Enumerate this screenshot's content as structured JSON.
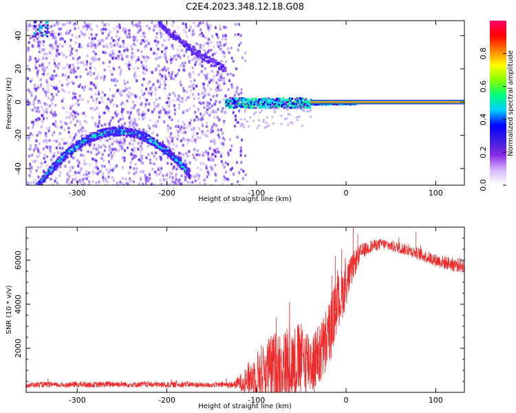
{
  "figure": {
    "title": "C2E4.2023.348.12.18.G08"
  },
  "chart_data": [
    {
      "type": "heatmap",
      "xlabel": "Height of straight line (km)",
      "ylabel": "Frequency (Hz)",
      "xlim": [
        -357,
        132
      ],
      "ylim": [
        -50,
        49
      ],
      "xticks": [
        -300,
        -200,
        -100,
        0,
        100
      ],
      "yticks": [
        -40,
        -20,
        0,
        20,
        40
      ],
      "colorbar": {
        "label": "Normalized spectral amplitude",
        "range": [
          0,
          1
        ],
        "ticks": [
          0.0,
          0.2,
          0.4,
          0.6,
          0.8
        ],
        "colors": [
          "#ffffff",
          "#d7b8ff",
          "#8a2be2",
          "#3d1de0",
          "#0000ff",
          "#00ccff",
          "#00ff80",
          "#80ff00",
          "#ffff00",
          "#ff8000",
          "#ff0000",
          "#ff0066"
        ]
      },
      "features": [
        {
          "name": "noise-region",
          "x_range": [
            -357,
            -125
          ],
          "note_colors": "#7a3cff"
        },
        {
          "name": "arc-lower",
          "x_range": [
            -345,
            -175
          ],
          "peak_x": -255,
          "peak_y": -17,
          "end_y": -50
        },
        {
          "name": "arc-upper",
          "x_range": [
            -210,
            -135
          ],
          "start_y": 49,
          "end_y": 20
        },
        {
          "name": "carrier-line",
          "x_range": [
            -135,
            132
          ],
          "y_value": 0
        }
      ]
    },
    {
      "type": "line",
      "xlabel": "Height of straight line (km)",
      "ylabel": "SNR (10 * v/v)",
      "xlim": [
        -357,
        132
      ],
      "ylim": [
        0,
        7500
      ],
      "xticks": [
        -300,
        -200,
        -100,
        0,
        100
      ],
      "yticks": [
        2000,
        4000,
        6000
      ],
      "series": [
        {
          "color": "#ee2a2a",
          "x": [
            -357,
            -340,
            -320,
            -300,
            -280,
            -260,
            -240,
            -220,
            -200,
            -180,
            -160,
            -140,
            -125,
            -115,
            -105,
            -95,
            -85,
            -75,
            -65,
            -55,
            -45,
            -35,
            -28,
            -22,
            -18,
            -14,
            -10,
            -6,
            -2,
            2,
            6,
            10,
            14,
            18,
            22,
            26,
            30,
            35,
            40,
            50,
            60,
            70,
            80,
            90,
            100,
            110,
            120,
            132
          ],
          "y": [
            330,
            350,
            330,
            360,
            340,
            380,
            350,
            360,
            340,
            370,
            330,
            340,
            350,
            500,
            700,
            900,
            1100,
            1300,
            1200,
            1400,
            1500,
            1400,
            1800,
            2300,
            2800,
            3400,
            4000,
            4300,
            4700,
            5100,
            5500,
            5900,
            6200,
            6400,
            6500,
            6600,
            6650,
            6700,
            6750,
            6650,
            6550,
            6450,
            6300,
            6150,
            6000,
            5900,
            5800,
            5750
          ],
          "noise_amplitude": [
            120,
            130,
            120,
            140,
            130,
            150,
            130,
            140,
            130,
            140,
            120,
            130,
            160,
            500,
            900,
            1300,
            1500,
            1600,
            1700,
            1800,
            1600,
            1500,
            1500,
            1600,
            1500,
            1400,
            1300,
            1200,
            1100,
            900,
            700,
            600,
            450,
            380,
            320,
            300,
            280,
            260,
            250,
            260,
            260,
            270,
            280,
            290,
            300,
            320,
            330,
            340
          ],
          "spikes": [
            [
              -78,
              3400
            ],
            [
              -66,
              2900
            ],
            [
              -53,
              3100
            ],
            [
              -30,
              3000
            ],
            [
              -16,
              5300
            ],
            [
              -12,
              6200
            ],
            [
              -5,
              6500
            ],
            [
              8,
              7500
            ],
            [
              13,
              7200
            ],
            [
              78,
              7300
            ]
          ]
        }
      ]
    }
  ]
}
